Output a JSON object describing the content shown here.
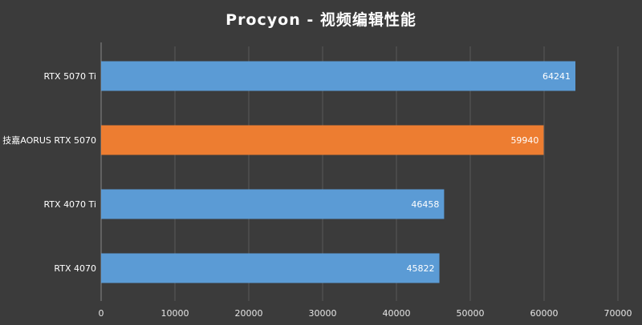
{
  "chart_data": {
    "type": "bar",
    "orientation": "horizontal",
    "title": "Procyon - 视频编辑性能",
    "categories": [
      "RTX 5070 Ti",
      "技嘉AORUS RTX 5070",
      "RTX 4070 Ti",
      "RTX 4070"
    ],
    "values": [
      64241,
      59940,
      46458,
      45822
    ],
    "bar_colors": [
      "#5b9bd5",
      "#ed7d31",
      "#5b9bd5",
      "#5b9bd5"
    ],
    "xlim": [
      0,
      70000
    ],
    "xticks": [
      0,
      10000,
      20000,
      30000,
      40000,
      50000,
      60000,
      70000
    ],
    "grid": "vertical",
    "xlabel": "",
    "ylabel": ""
  }
}
